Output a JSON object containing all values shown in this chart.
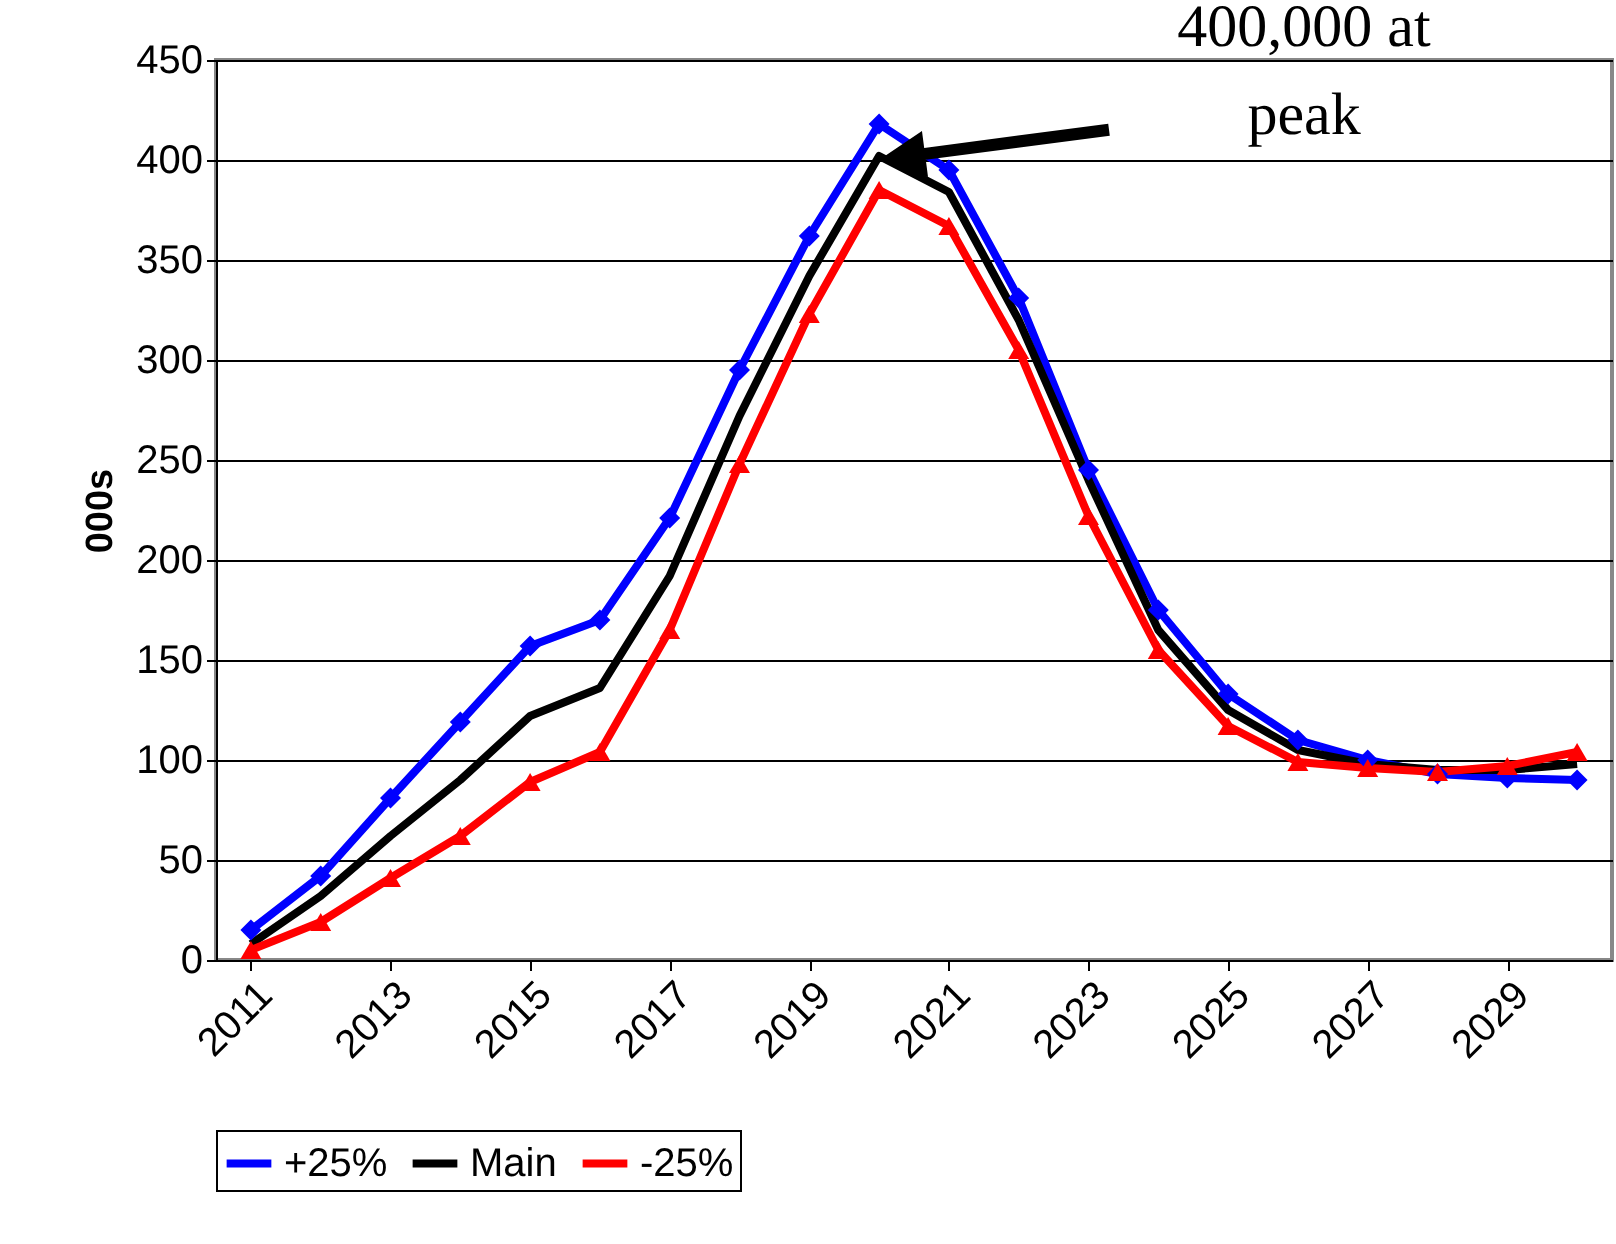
{
  "chart_data": {
    "type": "line",
    "ylabel": "000s",
    "x": [
      2011,
      2012,
      2013,
      2014,
      2015,
      2016,
      2017,
      2018,
      2019,
      2020,
      2021,
      2022,
      2023,
      2024,
      2025,
      2026,
      2027,
      2028,
      2029,
      2030
    ],
    "series": [
      {
        "name": "+25%",
        "color": "#0000ff",
        "marker": "diamond",
        "values": [
          15,
          42,
          81,
          119,
          157,
          170,
          221,
          295,
          362,
          418,
          395,
          331,
          245,
          175,
          133,
          110,
          100,
          93,
          91,
          90
        ]
      },
      {
        "name": "Main",
        "color": "#000000",
        "marker": "none",
        "values": [
          8,
          32,
          62,
          90,
          122,
          136,
          192,
          272,
          342,
          402,
          384,
          320,
          240,
          165,
          125,
          105,
          98,
          95,
          95,
          98
        ]
      },
      {
        "name": "-25%",
        "color": "#ff0000",
        "marker": "triangle",
        "values": [
          5,
          19,
          41,
          62,
          89,
          104,
          165,
          248,
          323,
          385,
          367,
          305,
          222,
          155,
          117,
          99,
          96,
          94,
          97,
          104
        ]
      }
    ],
    "xlim": [
      2010.5,
      2030.5
    ],
    "xticks": [
      2011,
      2013,
      2015,
      2017,
      2019,
      2021,
      2023,
      2025,
      2027,
      2029
    ],
    "ylim": [
      0,
      450
    ],
    "yticks": [
      0,
      50,
      100,
      150,
      200,
      250,
      300,
      350,
      400,
      450
    ],
    "grid": "y",
    "legend": "bottom",
    "line_style": "solid",
    "annotations": [
      "400,000 at peak"
    ]
  }
}
